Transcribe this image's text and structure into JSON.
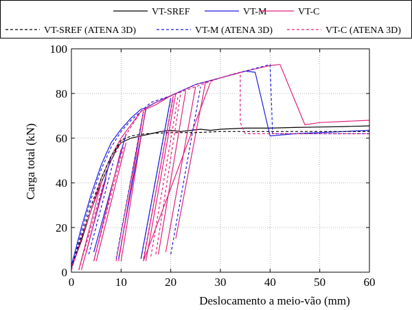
{
  "colors": {
    "VT-SREF": "#000000",
    "VT-M": "#1a1adf",
    "VT-C": "#e0207a",
    "VT-SREF (ATENA 3D)": "#000000",
    "VT-M (ATENA 3D)": "#1a1adf",
    "VT-C (ATENA 3D)": "#e0207a"
  },
  "chart_data": {
    "type": "line",
    "xlabel": "Deslocamento a meio-vão (mm)",
    "ylabel": "Carga total (kN)",
    "xlim": [
      0,
      60
    ],
    "ylim": [
      0,
      100
    ],
    "xticks": [
      "0",
      "10",
      "20",
      "30",
      "40",
      "50",
      "60"
    ],
    "yticks": [
      "0",
      "20",
      "40",
      "60",
      "80",
      "100"
    ],
    "grid": true,
    "legend_position": "top",
    "legend_rows": [
      [
        "VT-SREF",
        "VT-M",
        "VT-C"
      ],
      [
        "VT-SREF (ATENA 3D)",
        "VT-M (ATENA 3D)",
        "VT-C (ATENA 3D)"
      ]
    ],
    "series": [
      {
        "name": "VT-SREF",
        "style": "solid",
        "segments": [
          [
            [
              0,
              2
            ],
            [
              2,
              14
            ],
            [
              4,
              28
            ],
            [
              6,
              40
            ],
            [
              8,
              50
            ],
            [
              9,
              55
            ],
            [
              10,
              58
            ],
            [
              12,
              60
            ],
            [
              14,
              61
            ],
            [
              16,
              62
            ],
            [
              18,
              63
            ],
            [
              20,
              63.5
            ],
            [
              22,
              63
            ],
            [
              24,
              63.5
            ],
            [
              26,
              64
            ],
            [
              28,
              63.5
            ],
            [
              30,
              64
            ],
            [
              35,
              64.5
            ],
            [
              40,
              64.5
            ],
            [
              45,
              64.8
            ],
            [
              50,
              65
            ],
            [
              55,
              65.2
            ],
            [
              60,
              65.5
            ]
          ]
        ]
      },
      {
        "name": "VT-M",
        "style": "solid",
        "segments": [
          [
            [
              0,
              3
            ],
            [
              2,
              20
            ],
            [
              4,
              35
            ],
            [
              6,
              48
            ],
            [
              8,
              58
            ],
            [
              10,
              64
            ],
            [
              12,
              69
            ],
            [
              14,
              73
            ],
            [
              15,
              73.5
            ],
            [
              17,
              76
            ],
            [
              20,
              79
            ],
            [
              25,
              84
            ],
            [
              30,
              87
            ],
            [
              35,
              90
            ],
            [
              37,
              89.5
            ],
            [
              40,
              61
            ],
            [
              45,
              62
            ],
            [
              50,
              62.5
            ],
            [
              55,
              63
            ],
            [
              60,
              63.5
            ]
          ],
          [
            [
              3,
              9
            ],
            [
              8,
              52
            ]
          ],
          [
            [
              4.5,
              9
            ],
            [
              11,
              62
            ]
          ],
          [
            [
              9.5,
              6
            ],
            [
              15,
              73
            ]
          ],
          [
            [
              14,
              6
            ],
            [
              20,
              78
            ]
          ]
        ]
      },
      {
        "name": "VT-C",
        "style": "solid",
        "segments": [
          [
            [
              0,
              2
            ],
            [
              2,
              15
            ],
            [
              4,
              28
            ],
            [
              6,
              42
            ],
            [
              8,
              52
            ],
            [
              10,
              60
            ],
            [
              12,
              66
            ],
            [
              14,
              72
            ],
            [
              15,
              73
            ],
            [
              17,
              75
            ],
            [
              20,
              79
            ],
            [
              25,
              84
            ],
            [
              30,
              87
            ],
            [
              35,
              90
            ],
            [
              40,
              92.5
            ],
            [
              42,
              93
            ],
            [
              47,
              66
            ],
            [
              50,
              67
            ],
            [
              55,
              67.5
            ],
            [
              60,
              68
            ]
          ],
          [
            [
              1.5,
              1
            ],
            [
              6,
              40
            ]
          ],
          [
            [
              2,
              1
            ],
            [
              7,
              42
            ]
          ],
          [
            [
              4.5,
              5
            ],
            [
              10,
              55
            ]
          ],
          [
            [
              5,
              5
            ],
            [
              11,
              58
            ]
          ],
          [
            [
              9.5,
              5
            ],
            [
              14.5,
              72
            ]
          ],
          [
            [
              10,
              5
            ],
            [
              15,
              74
            ]
          ],
          [
            [
              14.5,
              5
            ],
            [
              20.5,
              79
            ]
          ],
          [
            [
              15,
              5
            ],
            [
              21,
              80
            ]
          ],
          [
            [
              17.5,
              8
            ],
            [
              23,
              81
            ]
          ],
          [
            [
              19,
              9
            ],
            [
              25,
              83
            ]
          ],
          [
            [
              21,
              15
            ],
            [
              27,
              85
            ]
          ],
          [
            [
              14.5,
              5
            ],
            [
              28,
              85
            ]
          ]
        ]
      },
      {
        "name": "VT-SREF (ATENA 3D)",
        "style": "dashed",
        "segments": [
          [
            [
              0,
              2
            ],
            [
              2,
              16
            ],
            [
              4,
              30
            ],
            [
              6,
              42
            ],
            [
              8,
              52
            ],
            [
              10,
              59
            ],
            [
              12,
              61
            ],
            [
              15,
              62
            ],
            [
              20,
              62.5
            ],
            [
              25,
              62.5
            ],
            [
              30,
              63
            ],
            [
              40,
              63
            ],
            [
              50,
              63
            ],
            [
              60,
              63
            ]
          ]
        ]
      },
      {
        "name": "VT-M (ATENA 3D)",
        "style": "dashed",
        "segments": [
          [
            [
              0,
              2
            ],
            [
              2,
              18
            ],
            [
              4,
              33
            ],
            [
              6,
              46
            ],
            [
              8,
              56
            ],
            [
              10,
              63
            ],
            [
              12,
              68
            ],
            [
              14,
              72
            ],
            [
              16,
              76
            ],
            [
              20,
              79
            ],
            [
              25,
              84
            ],
            [
              30,
              87
            ],
            [
              35,
              90
            ],
            [
              40,
              93
            ],
            [
              40.5,
              62
            ],
            [
              45,
              62
            ],
            [
              50,
              62
            ],
            [
              55,
              62
            ],
            [
              60,
              62
            ]
          ],
          [
            [
              3.5,
              8
            ],
            [
              8.5,
              50
            ]
          ],
          [
            [
              9,
              6
            ],
            [
              14.5,
              72
            ]
          ],
          [
            [
              14,
              6
            ],
            [
              20,
              78
            ]
          ],
          [
            [
              20,
              8
            ],
            [
              26,
              83
            ]
          ]
        ]
      },
      {
        "name": "VT-C (ATENA 3D)",
        "style": "dashed",
        "segments": [
          [
            [
              0,
              1
            ],
            [
              2,
              15
            ],
            [
              4,
              28
            ],
            [
              6,
              40
            ],
            [
              8,
              50
            ],
            [
              10,
              58
            ],
            [
              12,
              65
            ],
            [
              14,
              72
            ],
            [
              16,
              75
            ],
            [
              20,
              79
            ],
            [
              25,
              83
            ],
            [
              30,
              87
            ],
            [
              33,
              89
            ],
            [
              34,
              89.5
            ],
            [
              34,
              67
            ],
            [
              35,
              62
            ],
            [
              40,
              62
            ],
            [
              50,
              62
            ],
            [
              60,
              62
            ]
          ],
          [
            [
              1.5,
              1
            ],
            [
              6.5,
              40
            ]
          ],
          [
            [
              4.5,
              5
            ],
            [
              10.5,
              56
            ]
          ],
          [
            [
              9,
              5
            ],
            [
              14.5,
              72
            ]
          ],
          [
            [
              14.5,
              6
            ],
            [
              20.5,
              78
            ]
          ],
          [
            [
              16,
              7
            ],
            [
              21.5,
              79
            ]
          ],
          [
            [
              17,
              8
            ],
            [
              22,
              80
            ]
          ]
        ]
      }
    ]
  }
}
